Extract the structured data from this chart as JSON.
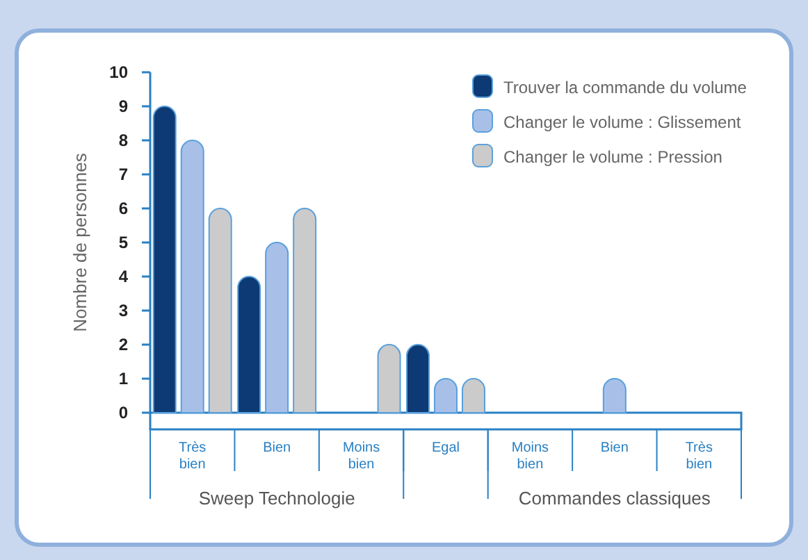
{
  "chart_data": {
    "type": "bar",
    "ylabel": "Nombre de personnes",
    "categories": [
      "Très bien",
      "Bien",
      "Moins bien",
      "Egal",
      "Moins bien",
      "Bien",
      "Très bien"
    ],
    "series": [
      {
        "name": "Trouver la commande du volume",
        "color": "#0d3a74",
        "values": [
          9,
          4,
          0,
          2,
          0,
          0,
          0
        ]
      },
      {
        "name": "Changer le volume : Glissement",
        "color": "#a8c0e8",
        "values": [
          8,
          5,
          0,
          1,
          0,
          1,
          0
        ]
      },
      {
        "name": "Changer le volume : Pression",
        "color": "#cbcbcb",
        "values": [
          6,
          6,
          2,
          1,
          0,
          0,
          0
        ]
      }
    ],
    "ylim": [
      0,
      10
    ],
    "yticks": [
      0,
      1,
      2,
      3,
      4,
      5,
      6,
      7,
      8,
      9,
      10
    ],
    "legend": "top right",
    "annotations": [
      "Sweep Technologie",
      "Commandes classiques"
    ]
  }
}
